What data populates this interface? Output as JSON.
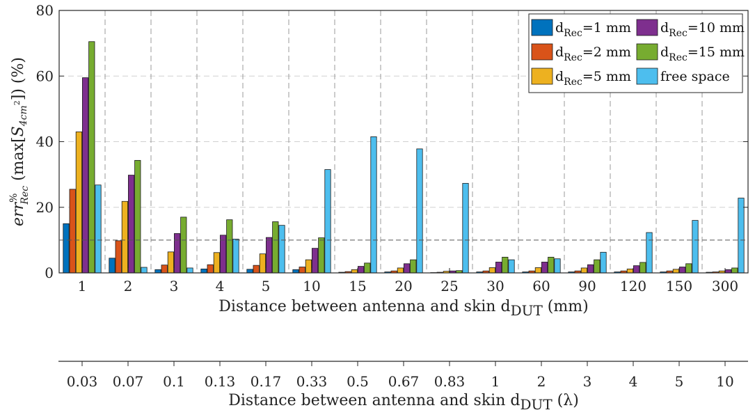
{
  "chart_data": {
    "type": "bar",
    "title": "",
    "categories": [
      "1",
      "2",
      "3",
      "4",
      "5",
      "10",
      "15",
      "20",
      "25",
      "30",
      "60",
      "90",
      "120",
      "150",
      "300"
    ],
    "secondary_categories": [
      "0.03",
      "0.07",
      "0.1",
      "0.13",
      "0.17",
      "0.33",
      "0.5",
      "0.67",
      "0.83",
      "1",
      "2",
      "3",
      "4",
      "5",
      "10"
    ],
    "xlabel": {
      "text": "Distance between antenna and skin d",
      "sub": "DUT",
      "unit": " (mm)"
    },
    "xlabel2": {
      "text": "Distance between antenna and skin d",
      "sub": "DUT",
      "unit": " (λ)"
    },
    "ylabel": {
      "pre": "err",
      "sup": "%",
      "sub": "Rec",
      "mid": " (max[",
      "s": "S",
      "s_sub": "4cm",
      "s_sup": "2",
      "post": "]) (%)"
    },
    "ylim": [
      0,
      80
    ],
    "yticks": [
      0,
      20,
      40,
      60,
      80
    ],
    "reference_line": 10,
    "grid": true,
    "legend_position": "top-right",
    "series": [
      {
        "name": "=1 mm",
        "label_prefix": "d",
        "label_sub": "Rec",
        "color": "#0072BD",
        "values": [
          15,
          4.5,
          1,
          1.2,
          1.1,
          1,
          0.2,
          0.3,
          0.1,
          0.3,
          0.3,
          0.3,
          0.3,
          0.3,
          0.2
        ]
      },
      {
        "name": "=2 mm",
        "label_prefix": "d",
        "label_sub": "Rec",
        "color": "#D95319",
        "values": [
          25.5,
          9.8,
          2.4,
          2.5,
          2.3,
          1.8,
          0.4,
          0.6,
          0.2,
          0.6,
          0.6,
          0.6,
          0.6,
          0.6,
          0.3
        ]
      },
      {
        "name": "=5 mm",
        "label_prefix": "d",
        "label_sub": "Rec",
        "color": "#EDB120",
        "values": [
          43,
          21.8,
          6.4,
          6.2,
          5.8,
          4,
          1,
          1.5,
          0.5,
          1.6,
          1.6,
          1.5,
          1.2,
          1.1,
          0.6
        ]
      },
      {
        "name": "=10 mm",
        "label_prefix": "d",
        "label_sub": "Rec",
        "color": "#7E2F8E",
        "values": [
          59.5,
          29.8,
          12,
          11.5,
          10.8,
          7.5,
          2,
          2.8,
          0.6,
          3.3,
          3.3,
          2.5,
          2.2,
          1.8,
          1
        ]
      },
      {
        "name": "=15 mm",
        "label_prefix": "d",
        "label_sub": "Rec",
        "color": "#77AC30",
        "values": [
          70.5,
          34.3,
          17,
          16.2,
          15.6,
          10.7,
          3,
          4,
          0.7,
          4.8,
          4.8,
          4,
          3.2,
          2.8,
          1.5
        ]
      },
      {
        "name": "free space",
        "label_prefix": "",
        "label_sub": "",
        "color": "#4DBEEE",
        "values": [
          26.8,
          1.7,
          1.5,
          10.3,
          14.5,
          31.5,
          41.5,
          37.8,
          27.3,
          4,
          4.3,
          6.3,
          12.3,
          16,
          22.8
        ]
      }
    ]
  }
}
